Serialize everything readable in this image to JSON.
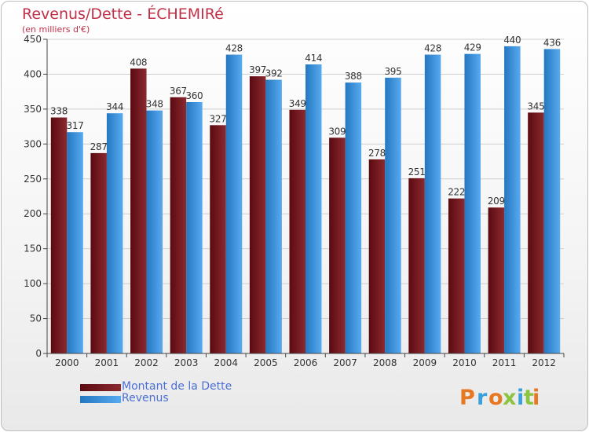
{
  "chart_data": {
    "type": "bar",
    "title": "Revenus/Dette - ÉCHEMIRé",
    "subtitle": "(en milliers d'€)",
    "categories": [
      "2000",
      "2001",
      "2002",
      "2003",
      "2004",
      "2005",
      "2006",
      "2007",
      "2008",
      "2009",
      "2010",
      "2011",
      "2012"
    ],
    "series": [
      {
        "name": "Montant de la Dette",
        "color": "#7a1c24",
        "values": [
          338,
          287,
          408,
          367,
          327,
          397,
          349,
          309,
          278,
          251,
          222,
          209,
          345
        ]
      },
      {
        "name": "Revenus",
        "color": "#3a8fd8",
        "values": [
          317,
          344,
          348,
          360,
          428,
          392,
          414,
          388,
          395,
          428,
          429,
          440,
          436
        ]
      }
    ],
    "ylim": [
      0,
      450
    ],
    "yticks": [
      0,
      50,
      100,
      150,
      200,
      250,
      300,
      350,
      400,
      450
    ],
    "grid": true,
    "legend": "bottom-left"
  },
  "legend": {
    "debt_label": "Montant de la Dette",
    "revenue_label": "Revenus"
  },
  "logo": {
    "brand": "Proxiti",
    "colors": [
      "#e87722",
      "#3aa0dc",
      "#e87722",
      "#8bc43f",
      "#3aa0dc",
      "#8bc43f",
      "#e87722"
    ]
  }
}
